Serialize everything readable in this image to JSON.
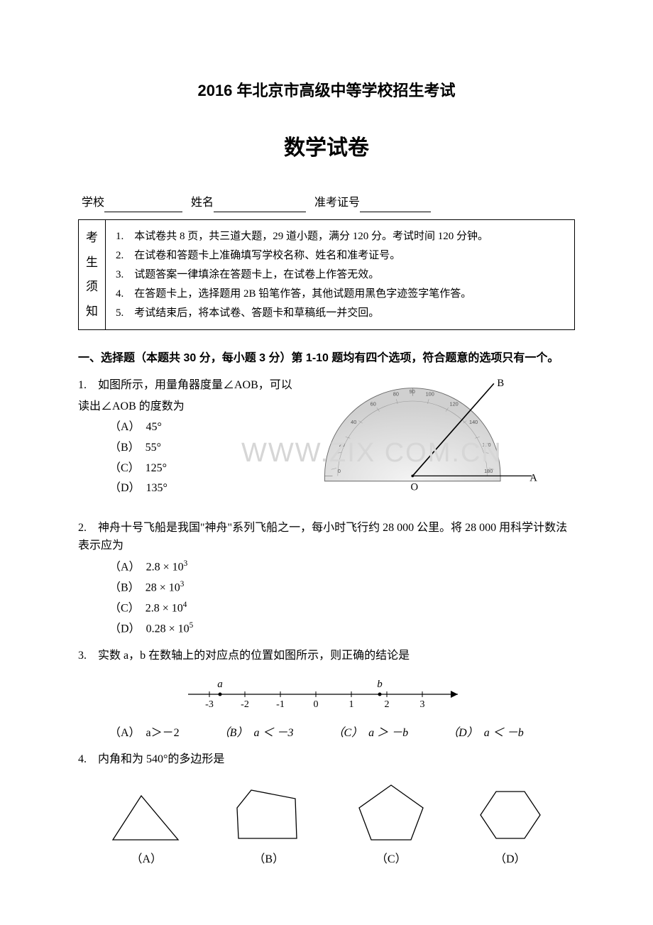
{
  "header": {
    "main_title": "2016 年北京市高级中等学校招生考试",
    "sub_title": "数学试卷"
  },
  "info_line": {
    "school_label": "学校",
    "name_label": "姓名",
    "exam_id_label": "准考证号"
  },
  "notice": {
    "label_chars": [
      "考",
      "生",
      "须",
      "知"
    ],
    "items": [
      "1.　本试卷共 8 页，共三道大题，29 道小题，满分 120 分。考试时间 120 分钟。",
      "2.　在试卷和答题卡上准确填写学校名称、姓名和准考证号。",
      "3.　试题答案一律填涂在答题卡上，在试卷上作答无效。",
      "4.　在答题卡上，选择题用 2B 铅笔作答，其他试题用黑色字迹签字笔作答。",
      "5.　考试结束后，将本试卷、答题卡和草稿纸一并交回。"
    ]
  },
  "section1": {
    "header": "一、选择题（本题共 30 分，每小题 3 分）第 1-10 题均有四个选项，符合题意的选项只有一个。"
  },
  "q1": {
    "text_l1": "1.　如图所示，用量角器度量∠AOB，可以",
    "text_l2": "读出∠AOB 的度数为",
    "opts": [
      "（A）　45°",
      "（B）　55°",
      "（C）　125°",
      "（D）　135°"
    ],
    "labels": {
      "O": "O",
      "A": "A",
      "B": "B"
    }
  },
  "q2": {
    "text": "2.　神舟十号飞船是我国\"神舟\"系列飞船之一，每小时飞行约 28 000 公里。将 28 000 用科学计数法表示应为",
    "opts": [
      {
        "prefix": "（A）　",
        "base": "2.8 × 10",
        "exp": "3"
      },
      {
        "prefix": "（B）　",
        "base": "28 × 10",
        "exp": "3"
      },
      {
        "prefix": "（C）　",
        "base": "2.8 × 10",
        "exp": "4"
      },
      {
        "prefix": "（D）　",
        "base": "0.28 × 10",
        "exp": "5"
      }
    ]
  },
  "q3": {
    "text": "3.　实数 a，b 在数轴上的对应点的位置如图所示，则正确的结论是",
    "opts": [
      "（A）　a＞－2",
      "（B）　a ＜ －3",
      "（C）　a ＞ －b",
      "（D）　a ＜ －b"
    ],
    "number_line": {
      "ticks": [
        -3,
        -2,
        -1,
        0,
        1,
        2,
        3
      ],
      "a_pos": -2.7,
      "b_pos": 1.8,
      "a_label": "a",
      "b_label": "b"
    }
  },
  "q4": {
    "text": "4.　内角和为 540°的多边形是",
    "labels": [
      "（A）",
      "（B）",
      "（C）",
      "（D）"
    ]
  },
  "watermark_text": "WWW.ZIX   COM.CN",
  "colors": {
    "text": "#000000",
    "bg": "#ffffff",
    "watermark": "#d6d6d6",
    "protractor_fill": "#e8e8e8",
    "protractor_stroke": "#888888"
  }
}
